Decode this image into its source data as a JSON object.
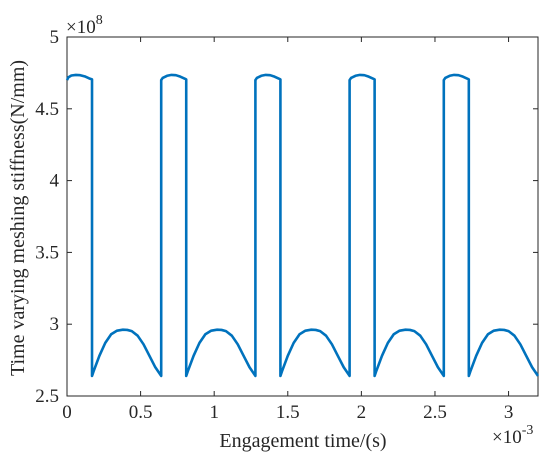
{
  "chart_data": {
    "type": "line",
    "xlabel": "Engagement time/(s)",
    "ylabel": "Time varying meshing stiffness(N/mm)",
    "x_multiplier": {
      "base": "×10",
      "exponent": "-3"
    },
    "y_multiplier": {
      "base": "×10",
      "exponent": "8"
    },
    "xlim": [
      0,
      0.0032
    ],
    "ylim": [
      250000000,
      500000000
    ],
    "x_ticks": [
      0,
      0.0005,
      0.001,
      0.0015,
      0.002,
      0.0025,
      0.003
    ],
    "x_tick_labels": [
      "0",
      "0.5",
      "1",
      "1.5",
      "2",
      "2.5",
      "3"
    ],
    "y_ticks": [
      250000000,
      300000000,
      350000000,
      400000000,
      450000000,
      500000000
    ],
    "y_tick_labels": [
      "2.5",
      "3",
      "3.5",
      "4",
      "4.5",
      "5"
    ],
    "grid": false,
    "line_color": "#0072BD",
    "series": [
      {
        "x": [
          0,
          1e-05,
          3e-05,
          6e-05,
          9e-05,
          0.00012,
          0.00015,
          0.00017,
          0.00017,
          0.00018,
          0.00022,
          0.00026,
          0.0003,
          0.00034,
          0.00038,
          0.00041,
          0.00044,
          0.00048,
          0.00052,
          0.00056,
          0.0006,
          0.00064,
          0.00064,
          0.00065,
          0.00068,
          0.00071,
          0.00074,
          0.00077,
          0.0008,
          0.00081,
          0.00081,
          0.00082,
          0.00086,
          0.0009,
          0.00094,
          0.00098,
          0.00102,
          0.00105,
          0.00108,
          0.00112,
          0.00116,
          0.0012,
          0.00124,
          0.00128,
          0.00128,
          0.00129,
          0.00132,
          0.00135,
          0.00138,
          0.00141,
          0.00144,
          0.00145,
          0.00145,
          0.00146,
          0.0015,
          0.00154,
          0.00158,
          0.00162,
          0.00166,
          0.00169,
          0.00172,
          0.00176,
          0.0018,
          0.00184,
          0.00188,
          0.00192,
          0.00192,
          0.00193,
          0.00196,
          0.00199,
          0.00202,
          0.00205,
          0.00208,
          0.00209,
          0.00209,
          0.0021,
          0.00214,
          0.00218,
          0.00222,
          0.00226,
          0.0023,
          0.00233,
          0.00236,
          0.0024,
          0.00244,
          0.00248,
          0.00252,
          0.00256,
          0.00256,
          0.00257,
          0.0026,
          0.00263,
          0.00266,
          0.00269,
          0.00272,
          0.00273,
          0.00273,
          0.00274,
          0.00278,
          0.00282,
          0.00286,
          0.0029,
          0.00294,
          0.00297,
          0.003,
          0.00304,
          0.00308,
          0.00312,
          0.00316,
          0.0032
        ],
        "y": [
          470000000,
          472000000,
          473200000,
          473600000,
          473400000,
          472600000,
          471200000,
          470500000,
          264000000,
          267000000,
          278000000,
          287000000,
          293000000,
          295500000,
          296200000,
          296000000,
          295200000,
          292000000,
          286000000,
          278000000,
          270000000,
          264000000,
          470000000,
          471500000,
          473000000,
          473600000,
          473400000,
          472400000,
          471000000,
          470500000,
          264000000,
          267000000,
          278000000,
          287000000,
          293000000,
          295500000,
          296200000,
          296000000,
          295200000,
          292000000,
          286000000,
          278000000,
          270000000,
          264000000,
          470000000,
          471500000,
          473000000,
          473600000,
          473400000,
          472400000,
          471000000,
          470500000,
          264000000,
          267000000,
          278000000,
          287000000,
          293000000,
          295500000,
          296200000,
          296000000,
          295200000,
          292000000,
          286000000,
          278000000,
          270000000,
          264000000,
          470000000,
          471500000,
          473000000,
          473600000,
          473400000,
          472400000,
          471000000,
          470500000,
          264000000,
          267000000,
          278000000,
          287000000,
          293000000,
          295500000,
          296200000,
          296000000,
          295200000,
          292000000,
          286000000,
          278000000,
          270000000,
          264000000,
          470000000,
          471500000,
          473000000,
          473600000,
          473400000,
          472400000,
          471000000,
          470500000,
          264000000,
          267000000,
          278000000,
          287000000,
          293000000,
          295500000,
          296200000,
          296000000,
          295200000,
          292000000,
          286000000,
          278000000,
          270000000,
          264000000
        ]
      }
    ]
  }
}
